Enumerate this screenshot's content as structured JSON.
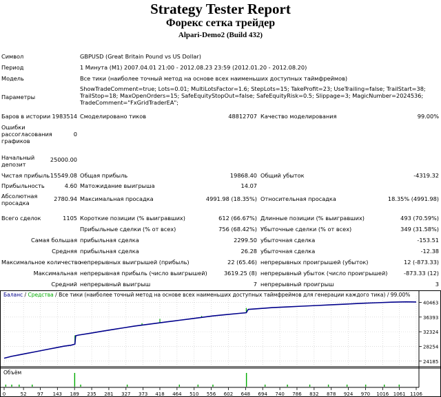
{
  "report": {
    "title": "Strategy Tester Report",
    "subtitle": "Форекс сетка трейдер",
    "server": "Alpari-Demo2 (Build 432)"
  },
  "info": {
    "symbol_label": "Символ",
    "symbol_value": "GBPUSD (Great Britain Pound vs US Dollar)",
    "period_label": "Период",
    "period_value": "1 Минута (M1) 2007.04.01 21:00 - 2012.08.23 23:59 (2012.01.20 - 2012.08.20)",
    "model_label": "Модель",
    "model_value": "Все тики (наиболее точный метод на основе всех наименьших доступных таймфреймов)",
    "params_label": "Параметры",
    "params_line1": "ShowTradeComment=true; Lots=0.01; MultiLotsFactor=1.6; StepLots=15; TakeProfit=23; UseTrailing=false; TrailStart=38;",
    "params_line2": "TrailStop=18; MaxOpenOrders=15; SafeEquityStopOut=false; SafeEquityRisk=0.5; Slippage=3; MagicNumber=2024536;",
    "params_line3": "TradeComment=\"FxGridTraderEA\";"
  },
  "stats": {
    "bars_label": "Баров в истории",
    "bars_value": "1983514",
    "ticks_label": "Смоделировано тиков",
    "ticks_value": "48812707",
    "quality_label": "Качество моделирования",
    "quality_value": "99.00%",
    "errors_label": "Ошибки рассогласования графиков",
    "errors_value": "0",
    "deposit_label": "Начальный депозит",
    "deposit_value": "25000.00",
    "net_label": "Чистая прибыль",
    "net_value": "15549.08",
    "gross_profit_label": "Общая прибыль",
    "gross_profit_value": "19868.40",
    "gross_loss_label": "Общий убыток",
    "gross_loss_value": "-4319.32",
    "pf_label": "Прибыльность",
    "pf_value": "4.60",
    "exp_label": "Матожидание выигрыша",
    "exp_value": "14.07",
    "abs_dd_label": "Абсолютная просадка",
    "abs_dd_value": "2780.94",
    "max_dd_label": "Максимальная просадка",
    "max_dd_value": "4991.98 (18.35%)",
    "rel_dd_label": "Относительная просадка",
    "rel_dd_value": "18.35% (4991.98)",
    "trades_label": "Всего сделок",
    "trades_value": "1105",
    "short_label": "Короткие позиции (% выигравших)",
    "short_value": "612 (66.67%)",
    "long_label": "Длинные позиции (% выигравших)",
    "long_value": "493 (70.59%)",
    "profit_trades_label": "Прибыльные сделки (% от всех)",
    "profit_trades_value": "756 (68.42%)",
    "loss_trades_label": "Убыточные сделки (% от всех)",
    "loss_trades_value": "349 (31.58%)",
    "largest_label": "Самая большая",
    "largest_profit_label": "прибыльная сделка",
    "largest_profit_value": "2299.50",
    "largest_loss_label": "убыточная сделка",
    "largest_loss_value": "-153.51",
    "average_label": "Средняя",
    "average_profit_label": "прибыльная сделка",
    "average_profit_value": "26.28",
    "average_loss_label": "убыточная сделка",
    "average_loss_value": "-12.38",
    "max_count_label": "Максимальное количество",
    "cons_wins_label": "непрерывных выигрышей (прибыль)",
    "cons_wins_value": "22 (65.46)",
    "cons_losses_label": "непрерывных проигрышей (убыток)",
    "cons_losses_value": "12 (-873.33)",
    "maximal_label": "Максимальная",
    "cons_profit_label": "непрерывная прибыль (число выигрышей)",
    "cons_profit_value": "3619.25 (8)",
    "cons_loss_label": "непрерывный убыток (число проигрышей)",
    "cons_loss_value": "-873.33 (12)",
    "avg_cons_label": "Средний",
    "avg_cons_wins_label": "непрерывный выигрыш",
    "avg_cons_wins_value": "7",
    "avg_cons_losses_label": "непрерывный проигрыш",
    "avg_cons_losses_value": "3"
  },
  "chart_data": {
    "type": "line",
    "legend_balance": "Баланс",
    "legend_sep": " / ",
    "legend_equity": "Средства",
    "legend_model": " / Все тики (наиболее точный метод на основе всех наименьших доступных таймфреймов для генерации каждого тика) / 99.00%",
    "volume_label": "Объём",
    "x_ticks": [
      "0",
      "52",
      "97",
      "143",
      "189",
      "235",
      "281",
      "327",
      "373",
      "418",
      "464",
      "510",
      "556",
      "602",
      "648",
      "694",
      "740",
      "786",
      "832",
      "878",
      "924",
      "970",
      "1016",
      "1061",
      "1106"
    ],
    "y_ticks": [
      "40463",
      "36393",
      "32324",
      "28254",
      "24185"
    ],
    "ylim": [
      23200,
      41500
    ],
    "balance": {
      "x": [
        0,
        20,
        40,
        60,
        80,
        100,
        120,
        140,
        160,
        180,
        190,
        192,
        200,
        230,
        260,
        290,
        320,
        350,
        380,
        410,
        440,
        470,
        500,
        530,
        560,
        590,
        630,
        650,
        655,
        680,
        720,
        760,
        800,
        840,
        880,
        920,
        960,
        1000,
        1040,
        1080,
        1106
      ],
      "y": [
        25000,
        25500,
        25900,
        26300,
        26700,
        27100,
        27500,
        27900,
        28300,
        28600,
        28900,
        31200,
        31400,
        31900,
        32400,
        32900,
        33400,
        33900,
        34300,
        34700,
        35100,
        35500,
        35900,
        36300,
        36700,
        37000,
        37400,
        37600,
        38500,
        38700,
        39000,
        39200,
        39400,
        39600,
        39800,
        40000,
        40200,
        40350,
        40500,
        40600,
        40560
      ]
    },
    "equity_spikes": [
      {
        "x": 190,
        "y1": 29000,
        "y2": 31300
      },
      {
        "x": 418,
        "y1": 34700,
        "y2": 35900
      },
      {
        "x": 650,
        "y1": 37600,
        "y2": 38900
      },
      {
        "x": 370,
        "y1": 34200,
        "y2": 34700
      },
      {
        "x": 530,
        "y1": 36200,
        "y2": 36700
      }
    ],
    "volume_bars": [
      4,
      20,
      40,
      75,
      189,
      205,
      330,
      470,
      520,
      560,
      650,
      700,
      760,
      820,
      870,
      920,
      970,
      1020,
      1060
    ],
    "volume_big": [
      189,
      650
    ]
  },
  "colors": {
    "balance": "#00008b",
    "equity": "#00aa00",
    "volume": "#00aa00",
    "grid": "#c8c8c8"
  }
}
